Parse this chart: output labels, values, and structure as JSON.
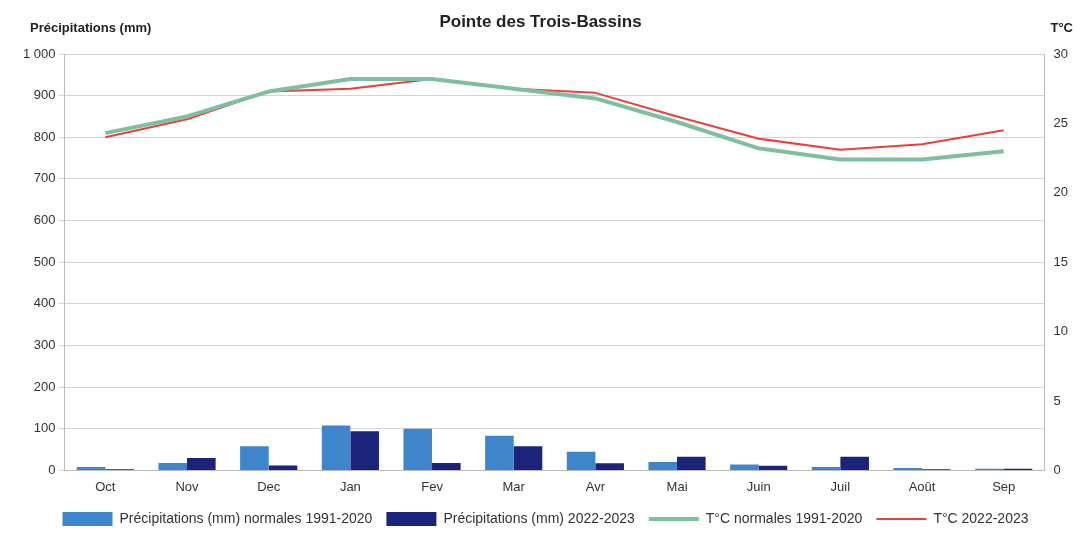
{
  "chart_data": {
    "type": "bar",
    "title": "Pointe des Trois-Bassins",
    "ylabel": "Précipitations (mm)",
    "y2label": "T°C",
    "categories": [
      "Oct",
      "Nov",
      "Dec",
      "Jan",
      "Fev",
      "Mar",
      "Avr",
      "Mai",
      "Juin",
      "Juil",
      "Août",
      "Sep"
    ],
    "series": [
      {
        "name": "Précipitations (mm) normales 1991-2020",
        "color": "#3f85cc",
        "values": [
          8,
          18,
          58,
          108,
          100,
          83,
          45,
          20,
          14,
          8,
          6,
          4
        ]
      },
      {
        "name": "Précipitations (mm) 2022-2023",
        "color": "#1b237a",
        "values": [
          3,
          30,
          12,
          94,
          18,
          58,
          17,
          33,
          11,
          33,
          3,
          4
        ]
      },
      {
        "name": "T°C normales 1991-2020",
        "type": "line",
        "axis": "y2",
        "color": "#7fbfa0",
        "values": [
          24.3,
          25.5,
          27.3,
          28.2,
          28.2,
          27.5,
          26.8,
          25.1,
          23.2,
          22.4,
          22.4,
          23.0
        ]
      },
      {
        "name": "T°C 2022-2023",
        "type": "line",
        "axis": "y2",
        "color": "#e8413c",
        "values": [
          24.0,
          25.3,
          27.3,
          27.5,
          28.2,
          27.5,
          27.2,
          25.5,
          23.9,
          23.1,
          23.5,
          24.5
        ]
      }
    ],
    "ylim": [
      0,
      1000
    ],
    "yticks": [
      0,
      100,
      200,
      300,
      400,
      500,
      600,
      700,
      800,
      900,
      {
        "value": 1000,
        "label": "1 000"
      }
    ],
    "y2lim": [
      0,
      30
    ],
    "y2ticks": [
      0,
      5,
      10,
      15,
      20,
      25,
      30
    ],
    "grid": "y",
    "legend": "bottom",
    "marker": "none"
  }
}
